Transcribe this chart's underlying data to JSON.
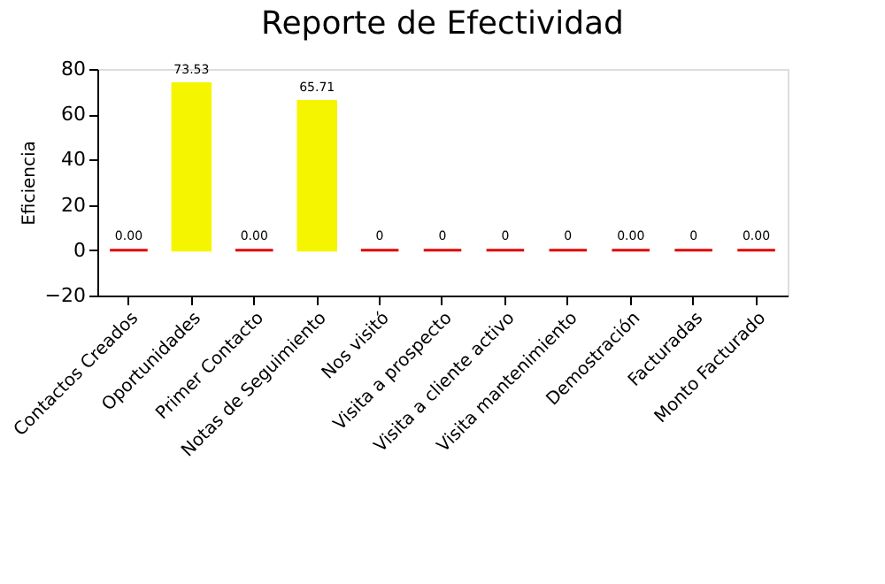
{
  "chart_data": {
    "type": "bar",
    "title": "Reporte de Efectividad",
    "ylabel": "Eficiencia",
    "categories": [
      "Contactos Creados",
      "Oportunidades",
      "Primer Contacto",
      "Notas de Seguimiento",
      "Nos visitó",
      "Visita a prospecto",
      "Visita a cliente activo",
      "Visita mantenimiento",
      "Demostración",
      "Facturadas",
      "Monto Facturado"
    ],
    "values": [
      0,
      73.53,
      0,
      65.71,
      0,
      0,
      0,
      0,
      0,
      0,
      0
    ],
    "value_labels": [
      "0.00",
      "73.53",
      "0.00",
      "65.71",
      "0",
      "0",
      "0",
      "0",
      "0.00",
      "0",
      "0.00"
    ],
    "colors": [
      "#e00000",
      "#f5f500",
      "#e00000",
      "#f5f500",
      "#e00000",
      "#e00000",
      "#e00000",
      "#e00000",
      "#e00000",
      "#e00000",
      "#e00000"
    ],
    "ylim": [
      -20,
      80
    ],
    "yticks": [
      -20,
      0,
      20,
      40,
      60,
      80
    ],
    "grid": false
  }
}
